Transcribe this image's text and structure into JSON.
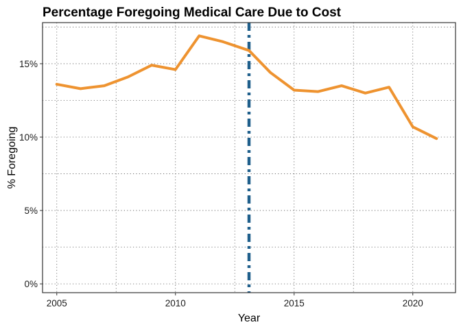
{
  "chart_data": {
    "type": "line",
    "title": "Percentage Foregoing Medical Care Due to Cost",
    "xlabel": "Year",
    "ylabel": "% Foregoing",
    "xlim": [
      2004.4,
      2021.8
    ],
    "ylim": [
      -0.006,
      0.178
    ],
    "x_ticks": [
      2005,
      2010,
      2015,
      2020
    ],
    "x_tick_labels": [
      "2005",
      "2010",
      "2015",
      "2020"
    ],
    "y_ticks": [
      0,
      0.05,
      0.1,
      0.15
    ],
    "y_tick_labels": [
      "0%",
      "5%",
      "10%",
      "15%"
    ],
    "grid": "dotted",
    "series": [
      {
        "color": "#ee9330",
        "x": [
          2005,
          2006,
          2007,
          2008,
          2009,
          2010,
          2011,
          2012,
          2013.1,
          2014,
          2015,
          2016,
          2017,
          2018,
          2019,
          2020,
          2021
        ],
        "y": [
          0.136,
          0.133,
          0.135,
          0.141,
          0.149,
          0.146,
          0.169,
          0.165,
          0.159,
          0.144,
          0.132,
          0.131,
          0.135,
          0.13,
          0.134,
          0.107,
          0.099
        ]
      }
    ],
    "reference_line": {
      "orientation": "vertical",
      "x": 2013.1,
      "color": "#1f5f8b",
      "style": "dash-dot"
    }
  }
}
